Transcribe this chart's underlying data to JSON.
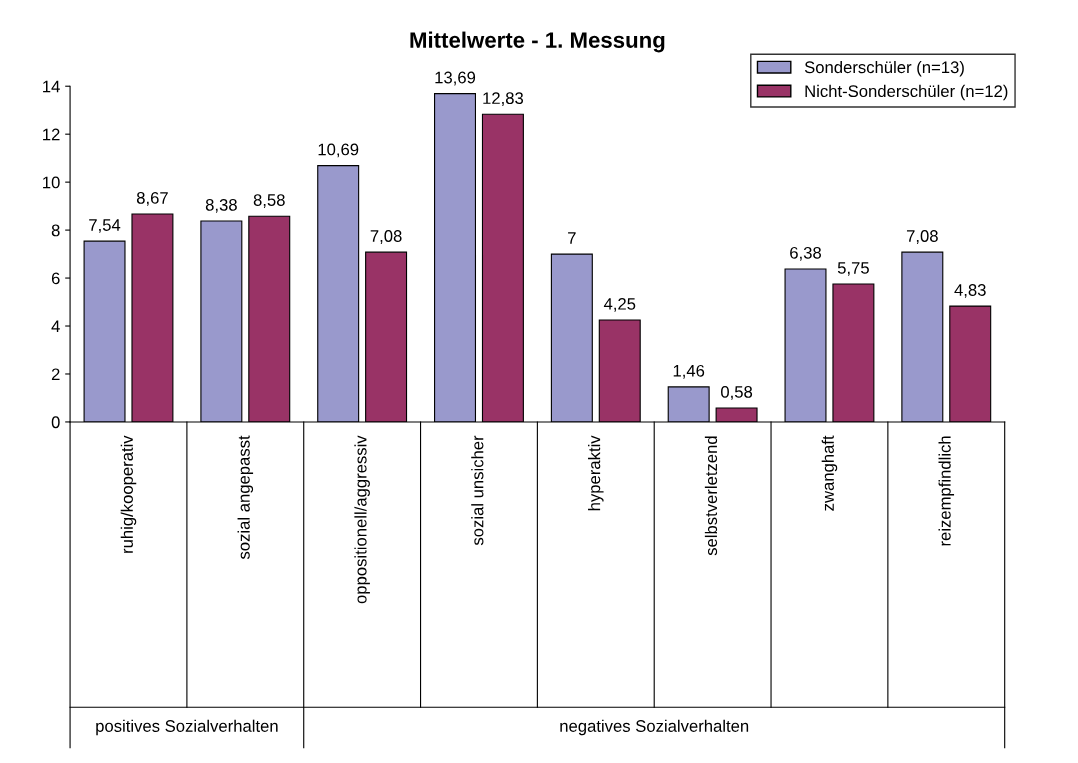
{
  "chart_data": {
    "type": "bar",
    "title": "Mittelwerte - 1. Messung",
    "categories": [
      "ruhig/kooperativ",
      "sozial angepasst",
      "oppositionell/aggressiv",
      "sozial unsicher",
      "hyperaktiv",
      "selbstverletzend",
      "zwanghaft",
      "reizempfindlich"
    ],
    "series": [
      {
        "name": "Sonderschüler (n=13)",
        "color": "#9999cc",
        "values": [
          7.54,
          8.38,
          10.69,
          13.69,
          7,
          1.46,
          6.38,
          7.08
        ],
        "value_labels": [
          "7,54",
          "8,38",
          "10,69",
          "13,69",
          "7",
          "1,46",
          "6,38",
          "7,08"
        ]
      },
      {
        "name": "Nicht-Sonderschüler (n=12)",
        "color": "#993366",
        "values": [
          8.67,
          8.58,
          7.08,
          12.83,
          4.25,
          0.58,
          5.75,
          4.83
        ],
        "value_labels": [
          "8,67",
          "8,58",
          "7,08",
          "12,83",
          "4,25",
          "0,58",
          "5,75",
          "4,83"
        ]
      }
    ],
    "ylim": [
      0,
      14
    ],
    "yticks": [
      0,
      2,
      4,
      6,
      8,
      10,
      12,
      14
    ],
    "grid": false,
    "legend": "top right",
    "annotations": [
      "positives Sozialverhalten",
      "negatives Sozialverhalten"
    ]
  }
}
